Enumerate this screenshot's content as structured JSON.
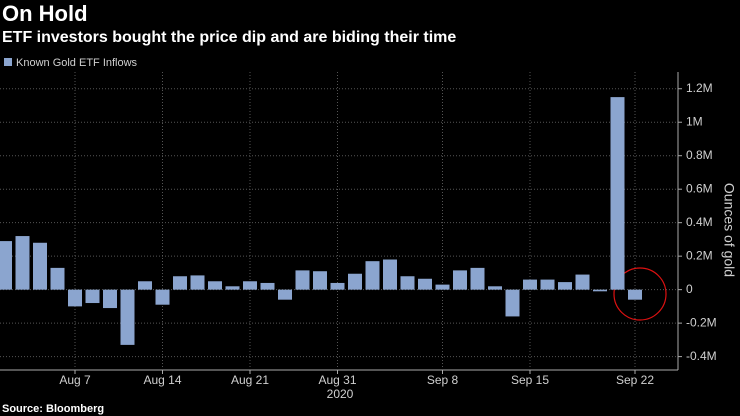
{
  "chart_data": {
    "type": "bar",
    "title": "On Hold",
    "subtitle": "ETF investors bought the price dip and are biding their time",
    "y_label": "Ounces of gold",
    "x_sublabel": "2020",
    "source": "Source: Bloomberg",
    "categories": [
      null,
      null,
      null,
      null,
      "Aug 7",
      null,
      null,
      null,
      null,
      "Aug 14",
      null,
      null,
      null,
      null,
      "Aug 21",
      null,
      null,
      null,
      null,
      "Aug 31",
      null,
      null,
      null,
      null,
      null,
      "Sep 8",
      null,
      null,
      null,
      null,
      "Sep 15",
      null,
      null,
      null,
      null,
      null,
      "Sep 22"
    ],
    "series": [
      {
        "name": "Known Gold ETF Inflows",
        "color": "#8ba5cf",
        "values": [
          290000,
          320000,
          280000,
          130000,
          -100000,
          -80000,
          -110000,
          -330000,
          50000,
          -90000,
          80000,
          85000,
          50000,
          20000,
          50000,
          40000,
          -60000,
          115000,
          110000,
          40000,
          95000,
          170000,
          180000,
          80000,
          65000,
          30000,
          115000,
          130000,
          20000,
          -160000,
          60000,
          60000,
          45000,
          90000,
          -10000,
          1150000,
          -60000
        ]
      }
    ],
    "ylim": [
      -480000,
      1300000
    ],
    "yticks": [
      {
        "value": -400000,
        "label": "-0.4M"
      },
      {
        "value": -200000,
        "label": "-0.2M"
      },
      0,
      {
        "value": 200000,
        "label": "0.2M"
      },
      {
        "value": 400000,
        "label": "0.4M"
      },
      {
        "value": 600000,
        "label": "0.6M"
      },
      {
        "value": 800000,
        "label": "0.8M"
      },
      {
        "value": 1000000,
        "label": "1M"
      },
      {
        "value": 1200000,
        "label": "1.2M"
      }
    ],
    "grid": true
  }
}
